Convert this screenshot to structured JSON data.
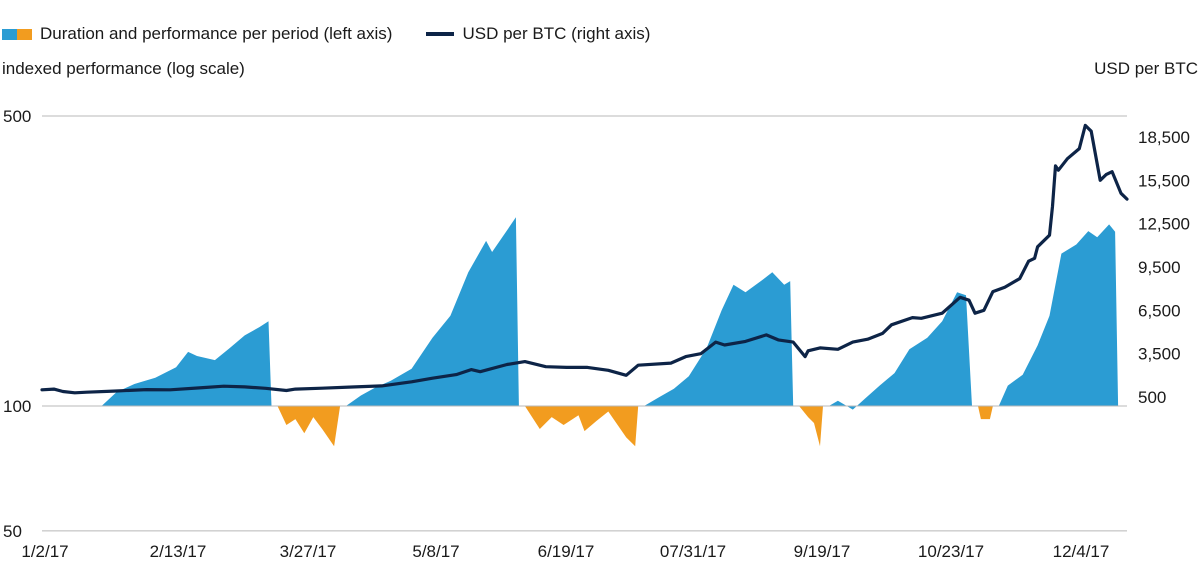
{
  "legend": {
    "period_label": "Duration and performance per period (left axis)",
    "btc_label": "USD per BTC (right axis)"
  },
  "axis_left_title": "indexed performance (log scale)",
  "axis_right_title": "USD per BTC",
  "colors": {
    "positive": "#2b9cd3",
    "negative": "#f29c1f",
    "btc_line": "#0d2447",
    "gridline": "#b8b8b8"
  },
  "chart_data": {
    "type": "area",
    "x_ticks": [
      "1/2/17",
      "2/13/17",
      "3/27/17",
      "5/8/17",
      "6/19/17",
      "07/31/17",
      "9/19/17",
      "10/23/17",
      "12/4/17"
    ],
    "left_axis": {
      "scale": "log",
      "ticks": [
        500,
        100,
        50
      ]
    },
    "right_axis": {
      "scale": "linear",
      "ticks": [
        18500,
        15500,
        12500,
        9500,
        6500,
        3500,
        500
      ]
    },
    "series": [
      {
        "name": "Duration and performance per period (left axis)",
        "kind": "area",
        "periods": [
          {
            "sign": "positive",
            "points": [
              [
                "2017-01-21",
                100
              ],
              [
                "2017-01-26",
                108
              ],
              [
                "2017-02-01",
                113
              ],
              [
                "2017-02-08",
                117
              ],
              [
                "2017-02-15",
                124
              ],
              [
                "2017-02-19",
                135
              ],
              [
                "2017-02-22",
                132
              ],
              [
                "2017-02-28",
                129
              ],
              [
                "2017-03-05",
                138
              ],
              [
                "2017-03-10",
                148
              ],
              [
                "2017-03-15",
                155
              ],
              [
                "2017-03-18",
                160
              ],
              [
                "2017-03-19",
                100
              ]
            ]
          },
          {
            "sign": "negative",
            "points": [
              [
                "2017-03-21",
                100
              ],
              [
                "2017-03-24",
                90
              ],
              [
                "2017-03-27",
                93
              ],
              [
                "2017-03-30",
                86
              ],
              [
                "2017-04-02",
                94
              ],
              [
                "2017-04-05",
                88
              ],
              [
                "2017-04-09",
                80
              ],
              [
                "2017-04-11",
                100
              ]
            ]
          },
          {
            "sign": "positive",
            "points": [
              [
                "2017-04-13",
                100
              ],
              [
                "2017-04-18",
                106
              ],
              [
                "2017-04-23",
                111
              ],
              [
                "2017-04-28",
                115
              ],
              [
                "2017-05-05",
                123
              ],
              [
                "2017-05-12",
                146
              ],
              [
                "2017-05-18",
                165
              ],
              [
                "2017-05-24",
                210
              ],
              [
                "2017-05-30",
                250
              ],
              [
                "2017-06-01",
                235
              ],
              [
                "2017-06-06",
                265
              ],
              [
                "2017-06-09",
                285
              ],
              [
                "2017-06-10",
                100
              ]
            ]
          },
          {
            "sign": "negative",
            "points": [
              [
                "2017-06-12",
                100
              ],
              [
                "2017-06-17",
                88
              ],
              [
                "2017-06-21",
                94
              ],
              [
                "2017-06-25",
                90
              ],
              [
                "2017-06-30",
                95
              ],
              [
                "2017-07-02",
                87
              ],
              [
                "2017-07-06",
                92
              ],
              [
                "2017-07-10",
                97
              ],
              [
                "2017-07-16",
                84
              ],
              [
                "2017-07-19",
                80
              ],
              [
                "2017-07-20",
                100
              ]
            ]
          },
          {
            "sign": "positive",
            "points": [
              [
                "2017-07-22",
                100
              ],
              [
                "2017-07-27",
                105
              ],
              [
                "2017-08-01",
                110
              ],
              [
                "2017-08-06",
                118
              ],
              [
                "2017-08-12",
                138
              ],
              [
                "2017-08-17",
                170
              ],
              [
                "2017-08-21",
                196
              ],
              [
                "2017-08-25",
                188
              ],
              [
                "2017-08-31",
                202
              ],
              [
                "2017-09-03",
                210
              ],
              [
                "2017-09-07",
                196
              ],
              [
                "2017-09-09",
                200
              ],
              [
                "2017-09-10",
                100
              ]
            ]
          },
          {
            "sign": "negative",
            "points": [
              [
                "2017-09-12",
                100
              ],
              [
                "2017-09-15",
                94
              ],
              [
                "2017-09-17",
                91
              ],
              [
                "2017-09-19",
                80
              ],
              [
                "2017-09-20",
                100
              ]
            ]
          },
          {
            "sign": "positive",
            "points": [
              [
                "2017-09-22",
                100
              ],
              [
                "2017-09-25",
                103
              ],
              [
                "2017-09-28",
                100
              ],
              [
                "2017-09-30",
                98
              ],
              [
                "2017-10-04",
                104
              ],
              [
                "2017-10-09",
                112
              ],
              [
                "2017-10-14",
                120
              ],
              [
                "2017-10-19",
                137
              ],
              [
                "2017-10-25",
                146
              ],
              [
                "2017-10-30",
                160
              ],
              [
                "2017-11-04",
                188
              ],
              [
                "2017-11-07",
                185
              ],
              [
                "2017-11-09",
                100
              ]
            ]
          },
          {
            "sign": "negative",
            "points": [
              [
                "2017-11-11",
                100
              ],
              [
                "2017-11-12",
                93
              ],
              [
                "2017-11-15",
                93
              ],
              [
                "2017-11-16",
                100
              ]
            ]
          },
          {
            "sign": "positive",
            "points": [
              [
                "2017-11-18",
                100
              ],
              [
                "2017-11-21",
                112
              ],
              [
                "2017-11-26",
                119
              ],
              [
                "2017-12-01",
                140
              ],
              [
                "2017-12-05",
                165
              ],
              [
                "2017-12-09",
                233
              ],
              [
                "2017-12-14",
                245
              ],
              [
                "2017-12-18",
                264
              ],
              [
                "2017-12-21",
                255
              ],
              [
                "2017-12-25",
                274
              ],
              [
                "2017-12-27",
                263
              ],
              [
                "2017-12-28",
                100
              ]
            ]
          }
        ]
      },
      {
        "name": "USD per BTC (right axis)",
        "kind": "line",
        "points": [
          [
            "2017-01-01",
            1000
          ],
          [
            "2017-01-05",
            1050
          ],
          [
            "2017-01-08",
            880
          ],
          [
            "2017-01-12",
            790
          ],
          [
            "2017-01-16",
            830
          ],
          [
            "2017-01-25",
            910
          ],
          [
            "2017-02-05",
            1010
          ],
          [
            "2017-02-13",
            1000
          ],
          [
            "2017-02-24",
            1150
          ],
          [
            "2017-03-03",
            1250
          ],
          [
            "2017-03-10",
            1200
          ],
          [
            "2017-03-17",
            1100
          ],
          [
            "2017-03-24",
            950
          ],
          [
            "2017-03-27",
            1050
          ],
          [
            "2017-04-05",
            1110
          ],
          [
            "2017-04-15",
            1190
          ],
          [
            "2017-04-25",
            1270
          ],
          [
            "2017-05-05",
            1550
          ],
          [
            "2017-05-12",
            1800
          ],
          [
            "2017-05-20",
            2050
          ],
          [
            "2017-05-25",
            2400
          ],
          [
            "2017-05-28",
            2250
          ],
          [
            "2017-06-06",
            2750
          ],
          [
            "2017-06-12",
            2950
          ],
          [
            "2017-06-19",
            2600
          ],
          [
            "2017-06-26",
            2550
          ],
          [
            "2017-07-03",
            2550
          ],
          [
            "2017-07-10",
            2350
          ],
          [
            "2017-07-16",
            2000
          ],
          [
            "2017-07-20",
            2700
          ],
          [
            "2017-07-31",
            2850
          ],
          [
            "2017-08-05",
            3300
          ],
          [
            "2017-08-10",
            3500
          ],
          [
            "2017-08-15",
            4300
          ],
          [
            "2017-08-18",
            4100
          ],
          [
            "2017-08-25",
            4350
          ],
          [
            "2017-09-01",
            4800
          ],
          [
            "2017-09-05",
            4450
          ],
          [
            "2017-09-10",
            4300
          ],
          [
            "2017-09-14",
            3300
          ],
          [
            "2017-09-15",
            3700
          ],
          [
            "2017-09-19",
            3900
          ],
          [
            "2017-09-25",
            3800
          ],
          [
            "2017-09-30",
            4300
          ],
          [
            "2017-10-05",
            4500
          ],
          [
            "2017-10-10",
            4900
          ],
          [
            "2017-10-13",
            5500
          ],
          [
            "2017-10-20",
            6000
          ],
          [
            "2017-10-23",
            5950
          ],
          [
            "2017-10-30",
            6300
          ],
          [
            "2017-11-05",
            7400
          ],
          [
            "2017-11-08",
            7200
          ],
          [
            "2017-11-10",
            6300
          ],
          [
            "2017-11-13",
            6500
          ],
          [
            "2017-11-16",
            7800
          ],
          [
            "2017-11-20",
            8100
          ],
          [
            "2017-11-25",
            8700
          ],
          [
            "2017-11-28",
            9900
          ],
          [
            "2017-11-30",
            10100
          ],
          [
            "2017-12-01",
            10900
          ],
          [
            "2017-12-05",
            11700
          ],
          [
            "2017-12-06",
            13700
          ],
          [
            "2017-12-07",
            16500
          ],
          [
            "2017-12-08",
            16200
          ],
          [
            "2017-12-11",
            17000
          ],
          [
            "2017-12-15",
            17700
          ],
          [
            "2017-12-17",
            19300
          ],
          [
            "2017-12-19",
            18900
          ],
          [
            "2017-12-22",
            15500
          ],
          [
            "2017-12-24",
            15900
          ],
          [
            "2017-12-26",
            16100
          ],
          [
            "2017-12-29",
            14600
          ],
          [
            "2017-12-31",
            14200
          ]
        ]
      }
    ]
  }
}
